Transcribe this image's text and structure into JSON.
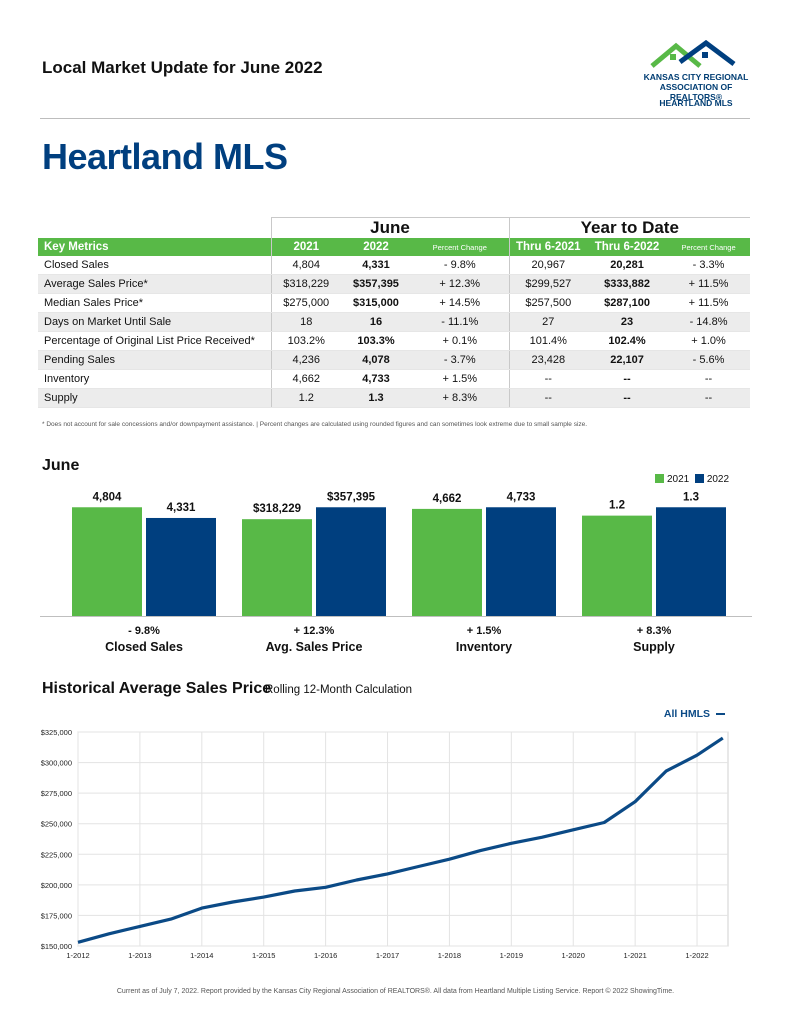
{
  "header": {
    "title": "Local Market Update for June 2022",
    "big_title": "Heartland MLS",
    "logo_line1": "KANSAS CITY REGIONAL",
    "logo_line2": "ASSOCIATION OF REALTORS®",
    "logo_line3": "HEARTLAND MLS"
  },
  "table": {
    "group_june": "June",
    "group_ytd": "Year to Date",
    "headers": [
      "Key Metrics",
      "2021",
      "2022",
      "Percent Change",
      "Thru 6-2021",
      "Thru 6-2022",
      "Percent Change"
    ],
    "rows": [
      [
        "Closed Sales",
        "4,804",
        "4,331",
        "- 9.8%",
        "20,967",
        "20,281",
        "- 3.3%"
      ],
      [
        "Average Sales Price*",
        "$318,229",
        "$357,395",
        "+ 12.3%",
        "$299,527",
        "$333,882",
        "+ 11.5%"
      ],
      [
        "Median Sales Price*",
        "$275,000",
        "$315,000",
        "+ 14.5%",
        "$257,500",
        "$287,100",
        "+ 11.5%"
      ],
      [
        "Days on Market Until Sale",
        "18",
        "16",
        "- 11.1%",
        "27",
        "23",
        "- 14.8%"
      ],
      [
        "Percentage of Original List Price Received*",
        "103.2%",
        "103.3%",
        "+ 0.1%",
        "101.4%",
        "102.4%",
        "+ 1.0%"
      ],
      [
        "Pending Sales",
        "4,236",
        "4,078",
        "- 3.7%",
        "23,428",
        "22,107",
        "- 5.6%"
      ],
      [
        "Inventory",
        "4,662",
        "4,733",
        "+ 1.5%",
        "--",
        "--",
        "--"
      ],
      [
        "Supply",
        "1.2",
        "1.3",
        "+ 8.3%",
        "--",
        "--",
        "--"
      ]
    ],
    "footnote": "* Does not account for sale concessions and/or downpayment assistance. | Percent changes are calculated using rounded figures and can sometimes look extreme due to small sample size."
  },
  "june_chart_title": "June",
  "hist_title": "Historical Average Sales Price",
  "hist_subtitle": "Rolling 12-Month Calculation",
  "footer": "Current as of July 7, 2022. Report provided by the Kansas City Regional Association of REALTORS®. All data from Heartland Multiple Listing Service. Report © 2022 ShowingTime.",
  "colors": {
    "green": "#58b947",
    "navy": "#003f7f",
    "line": "#0b4a86"
  },
  "chart_data": [
    {
      "type": "bar",
      "legend": [
        "2021",
        "2022"
      ],
      "legend_position": "top-right",
      "groups": [
        {
          "name": "Closed Sales",
          "change": "- 9.8%",
          "v2021": 4804,
          "v2022": 4331,
          "l2021": "4,804",
          "l2022": "4,331"
        },
        {
          "name": "Avg. Sales Price",
          "change": "+ 12.3%",
          "v2021": 318229,
          "v2022": 357395,
          "l2021": "$318,229",
          "l2022": "$357,395"
        },
        {
          "name": "Inventory",
          "change": "+ 1.5%",
          "v2021": 4662,
          "v2022": 4733,
          "l2021": "4,662",
          "l2022": "4,733"
        },
        {
          "name": "Supply",
          "change": "+ 8.3%",
          "v2021": 1.2,
          "v2022": 1.3,
          "l2021": "1.2",
          "l2022": "1.3"
        }
      ]
    },
    {
      "type": "line",
      "series_name": "All HMLS",
      "grid": true,
      "ylim": [
        150000,
        325000
      ],
      "yticks": [
        150000,
        175000,
        200000,
        225000,
        250000,
        275000,
        300000,
        325000
      ],
      "ytick_labels": [
        "$150,000",
        "$175,000",
        "$200,000",
        "$225,000",
        "$250,000",
        "$275,000",
        "$300,000",
        "$325,000"
      ],
      "xtick_labels": [
        "1-2012",
        "1-2013",
        "1-2014",
        "1-2015",
        "1-2016",
        "1-2017",
        "1-2018",
        "1-2019",
        "1-2020",
        "1-2021",
        "1-2022"
      ],
      "x": [
        "1-2012",
        "7-2012",
        "1-2013",
        "7-2013",
        "1-2014",
        "7-2014",
        "1-2015",
        "7-2015",
        "1-2016",
        "7-2016",
        "1-2017",
        "7-2017",
        "1-2018",
        "7-2018",
        "1-2019",
        "7-2019",
        "1-2020",
        "7-2020",
        "1-2021",
        "7-2021",
        "1-2022",
        "6-2022"
      ],
      "values": [
        153000,
        160000,
        166000,
        172000,
        181000,
        186000,
        190000,
        195000,
        198000,
        204000,
        209000,
        215000,
        221000,
        228000,
        234000,
        239000,
        245000,
        251000,
        268000,
        293000,
        306000,
        320000
      ]
    }
  ]
}
